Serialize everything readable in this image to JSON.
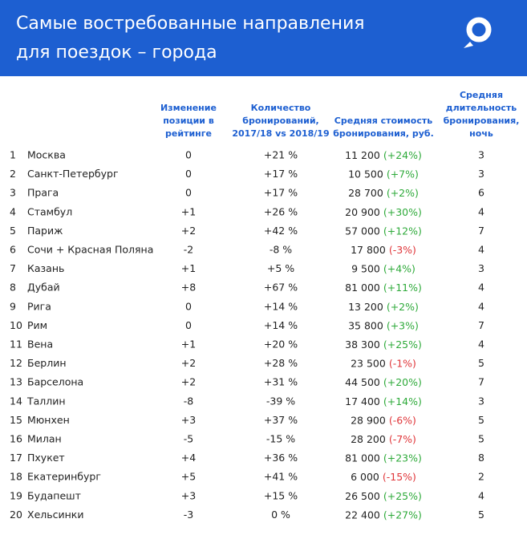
{
  "header": {
    "title_lines": [
      "Самые востребованные направления",
      "для поездок – города"
    ]
  },
  "table": {
    "columns": [
      [
        "Изменение",
        "позиции в",
        "рейтинге"
      ],
      [
        "Количество",
        "бронирований,",
        "2017/18 vs 2018/19"
      ],
      [
        "Средняя стоимость",
        "бронирования, руб."
      ],
      [
        "Средняя",
        "длительность",
        "бронирования,",
        "ночь"
      ]
    ],
    "rows": [
      [
        "1",
        "Москва",
        "0",
        "+21 %",
        "11 200",
        "(+24%)",
        "3"
      ],
      [
        "2",
        "Санкт-Петербург",
        "0",
        "+17 %",
        "10 500",
        "(+7%)",
        "3"
      ],
      [
        "3",
        "Прага",
        "0",
        "+17 %",
        "28 700",
        "(+2%)",
        "6"
      ],
      [
        "4",
        "Стамбул",
        "+1",
        "+26 %",
        "20 900",
        "(+30%)",
        "4"
      ],
      [
        "5",
        "Париж",
        "+2",
        "+42 %",
        "57 000",
        "(+12%)",
        "7"
      ],
      [
        "6",
        "Сочи + Красная Поляна",
        "-2",
        "-8 %",
        "17 800",
        "(-3%)",
        "4"
      ],
      [
        "7",
        "Казань",
        "+1",
        "+5 %",
        "9 500",
        "(+4%)",
        "3"
      ],
      [
        "8",
        "Дубай",
        "+8",
        "+67 %",
        "81 000",
        "(+11%)",
        "4"
      ],
      [
        "9",
        "Рига",
        "0",
        "+14 %",
        "13 200",
        "(+2%)",
        "4"
      ],
      [
        "10",
        "Рим",
        "0",
        "+14 %",
        "35 800",
        "(+3%)",
        "7"
      ],
      [
        "11",
        "Вена",
        "+1",
        "+20 %",
        "38 300",
        "(+25%)",
        "4"
      ],
      [
        "12",
        "Берлин",
        "+2",
        "+28 %",
        "23 500",
        "(-1%)",
        "5"
      ],
      [
        "13",
        "Барселона",
        "+2",
        "+31 %",
        "44 500",
        "(+20%)",
        "7"
      ],
      [
        "14",
        "Таллин",
        "-8",
        "-39 %",
        "17 400",
        "(+14%)",
        "3"
      ],
      [
        "15",
        "Мюнхен",
        "+3",
        "+37 %",
        "28 900",
        "(-6%)",
        "5"
      ],
      [
        "16",
        "Милан",
        "-5",
        "-15 %",
        "28 200",
        "(-7%)",
        "5"
      ],
      [
        "17",
        "Пхукет",
        "+4",
        "+36 %",
        "81 000",
        "(+23%)",
        "8"
      ],
      [
        "18",
        "Екатеринбург",
        "+5",
        "+41 %",
        "6 000",
        "(-15%)",
        "2"
      ],
      [
        "19",
        "Будапешт",
        "+3",
        "+15 %",
        "26 500",
        "(+25%)",
        "4"
      ],
      [
        "20",
        "Хельсинки",
        "-3",
        "0 %",
        "22 400",
        "(+27%)",
        "5"
      ]
    ]
  }
}
